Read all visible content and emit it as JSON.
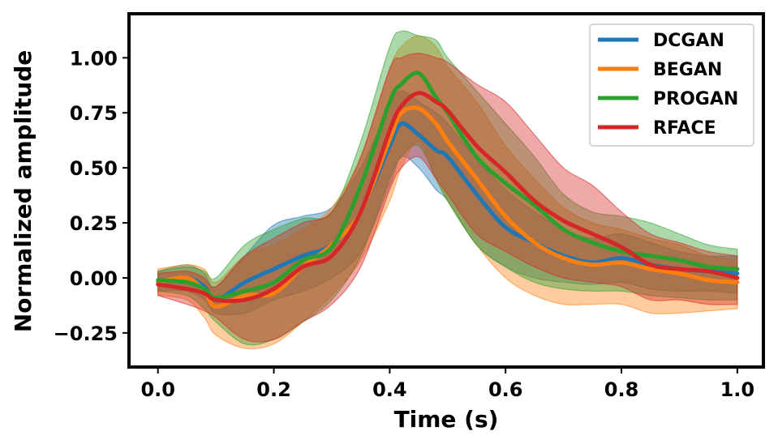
{
  "chart_data": {
    "type": "line",
    "xlabel": "Time (s)",
    "ylabel": "Normalized amplitude",
    "xlim": [
      -0.05,
      1.045
    ],
    "ylim": [
      -0.405,
      1.2
    ],
    "x_ticks": [
      0.0,
      0.2,
      0.4,
      0.6,
      0.8,
      1.0
    ],
    "x_tick_labels": [
      "0.0",
      "0.2",
      "0.4",
      "0.6",
      "0.8",
      "1.0"
    ],
    "y_ticks": [
      -0.25,
      0.0,
      0.25,
      0.5,
      0.75,
      1.0
    ],
    "y_tick_labels": [
      "−0.25",
      "0.00",
      "0.25",
      "0.50",
      "0.75",
      "1.00"
    ],
    "legend_position": "top-right",
    "shaded_band": "mean ± spread per series",
    "x": [
      0.0,
      0.05,
      0.08,
      0.1,
      0.15,
      0.2,
      0.25,
      0.3,
      0.35,
      0.4,
      0.42,
      0.45,
      0.48,
      0.5,
      0.55,
      0.6,
      0.65,
      0.7,
      0.75,
      0.8,
      0.85,
      0.9,
      0.95,
      1.0
    ],
    "series": [
      {
        "name": "DCGAN",
        "color": "#1f77b4",
        "values": [
          -0.02,
          0.0,
          -0.04,
          -0.1,
          -0.02,
          0.04,
          0.1,
          0.15,
          0.3,
          0.6,
          0.7,
          0.65,
          0.58,
          0.55,
          0.38,
          0.23,
          0.16,
          0.1,
          0.07,
          0.09,
          0.06,
          0.04,
          0.03,
          0.02
        ],
        "upper": [
          0.03,
          0.06,
          0.02,
          -0.04,
          0.1,
          0.24,
          0.28,
          0.32,
          0.5,
          0.78,
          0.85,
          0.8,
          0.75,
          0.7,
          0.54,
          0.4,
          0.3,
          0.22,
          0.18,
          0.2,
          0.16,
          0.12,
          0.1,
          0.1
        ],
        "lower": [
          -0.06,
          -0.06,
          -0.1,
          -0.16,
          -0.16,
          -0.1,
          -0.06,
          0.0,
          0.12,
          0.42,
          0.55,
          0.5,
          0.4,
          0.35,
          0.15,
          0.05,
          0.0,
          -0.02,
          -0.03,
          -0.02,
          -0.05,
          -0.06,
          -0.06,
          -0.07
        ]
      },
      {
        "name": "BEGAN",
        "color": "#ff7f0e",
        "values": [
          -0.02,
          0.0,
          -0.06,
          -0.13,
          -0.08,
          -0.07,
          0.05,
          0.15,
          0.3,
          0.63,
          0.75,
          0.77,
          0.7,
          0.62,
          0.45,
          0.28,
          0.16,
          0.09,
          0.06,
          0.07,
          0.04,
          0.02,
          -0.01,
          -0.02
        ],
        "upper": [
          0.04,
          0.06,
          0.04,
          -0.02,
          0.1,
          0.15,
          0.22,
          0.32,
          0.55,
          0.95,
          1.05,
          1.1,
          1.05,
          0.96,
          0.8,
          0.6,
          0.45,
          0.32,
          0.25,
          0.22,
          0.18,
          0.15,
          0.1,
          0.08
        ],
        "lower": [
          -0.08,
          -0.1,
          -0.18,
          -0.26,
          -0.32,
          -0.3,
          -0.2,
          -0.08,
          0.08,
          0.35,
          0.5,
          0.62,
          0.45,
          0.35,
          0.15,
          0.0,
          -0.08,
          -0.12,
          -0.12,
          -0.12,
          -0.16,
          -0.16,
          -0.15,
          -0.14
        ]
      },
      {
        "name": "PROGAN",
        "color": "#2ca02c",
        "values": [
          -0.01,
          -0.02,
          -0.05,
          -0.09,
          -0.06,
          -0.02,
          0.08,
          0.14,
          0.42,
          0.8,
          0.88,
          0.93,
          0.82,
          0.75,
          0.55,
          0.43,
          0.33,
          0.22,
          0.16,
          0.12,
          0.1,
          0.08,
          0.05,
          0.04
        ],
        "upper": [
          0.03,
          0.05,
          0.03,
          0.0,
          0.15,
          0.22,
          0.27,
          0.3,
          0.62,
          1.05,
          1.12,
          1.1,
          1.08,
          1.0,
          0.85,
          0.7,
          0.55,
          0.38,
          0.3,
          0.28,
          0.25,
          0.2,
          0.15,
          0.13
        ],
        "lower": [
          -0.06,
          -0.08,
          -0.14,
          -0.2,
          -0.3,
          -0.28,
          -0.2,
          -0.1,
          0.1,
          0.45,
          0.55,
          0.6,
          0.45,
          0.35,
          0.15,
          0.05,
          -0.02,
          -0.05,
          -0.06,
          -0.06,
          -0.08,
          -0.09,
          -0.1,
          -0.1
        ]
      },
      {
        "name": "RFACE",
        "color": "#d62728",
        "values": [
          -0.03,
          -0.05,
          -0.07,
          -0.1,
          -0.1,
          -0.05,
          0.05,
          0.1,
          0.3,
          0.67,
          0.78,
          0.84,
          0.8,
          0.76,
          0.6,
          0.48,
          0.35,
          0.26,
          0.2,
          0.14,
          0.06,
          0.04,
          0.03,
          0.0
        ],
        "upper": [
          0.02,
          0.03,
          0.0,
          -0.04,
          0.1,
          0.18,
          0.25,
          0.3,
          0.55,
          0.95,
          1.0,
          1.02,
          1.0,
          0.98,
          0.88,
          0.8,
          0.65,
          0.5,
          0.42,
          0.3,
          0.2,
          0.16,
          0.12,
          0.1
        ],
        "lower": [
          -0.08,
          -0.12,
          -0.15,
          -0.18,
          -0.28,
          -0.28,
          -0.2,
          -0.12,
          0.05,
          0.4,
          0.5,
          0.55,
          0.45,
          0.38,
          0.2,
          0.12,
          0.05,
          0.0,
          -0.02,
          -0.04,
          -0.1,
          -0.1,
          -0.12,
          -0.12
        ]
      }
    ]
  }
}
